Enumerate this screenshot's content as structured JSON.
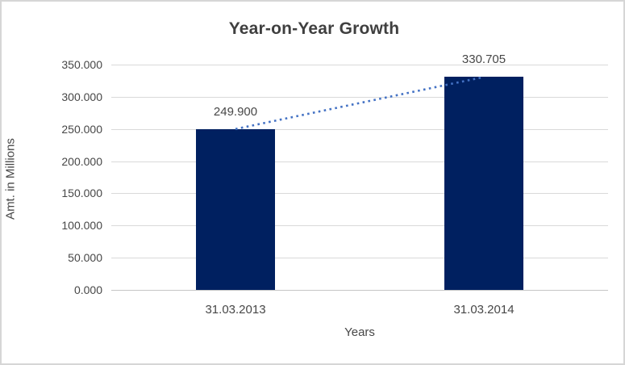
{
  "window": {
    "background": "#ffffff",
    "border_color": "#d6d6d6"
  },
  "chart_data": {
    "type": "bar",
    "title": "Year-on-Year Growth",
    "xlabel": "Years",
    "ylabel": "Amt. in Millions",
    "categories": [
      "31.03.2013",
      "31.03.2014"
    ],
    "values": [
      249.9,
      330.705
    ],
    "data_labels": [
      "249.900",
      "330.705"
    ],
    "ylim": [
      0,
      350
    ],
    "ytick_step": 50,
    "ytick_labels": [
      "0.000",
      "50.000",
      "100.000",
      "150.000",
      "200.000",
      "250.000",
      "300.000",
      "350.000"
    ],
    "grid": true,
    "legend_position": "none",
    "bar_color": "#002060",
    "trendline": {
      "type": "linear",
      "style": "dotted",
      "color": "#4472C4"
    },
    "text_color": "#474747",
    "gridline_color": "#d9d9d9"
  }
}
